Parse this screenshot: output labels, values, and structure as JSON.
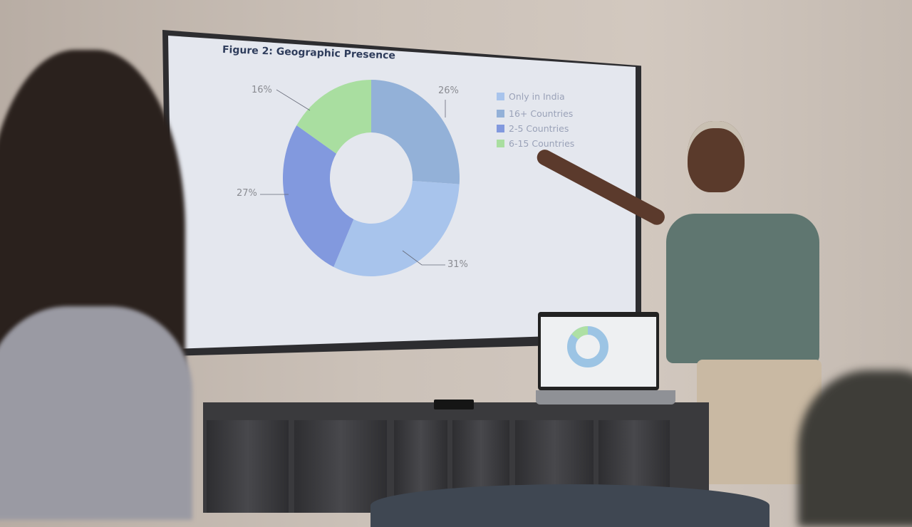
{
  "slide": {
    "title": "Figure 2: Geographic Presence",
    "labels": [
      "26%",
      "31%",
      "27%",
      "16%"
    ]
  },
  "chart_data": {
    "type": "pie",
    "donut": true,
    "title": "Figure 2: Geographic Presence",
    "categories": [
      "16+ Countries",
      "Only in India",
      "2-5 Countries",
      "6-15 Countries"
    ],
    "values": [
      26,
      31,
      27,
      16
    ],
    "value_labels": [
      "26%",
      "31%",
      "27%",
      "16%"
    ],
    "legend": [
      "Only in India",
      "16+ Countries",
      "2-5 Countries",
      "6-15 Countries"
    ],
    "legend_placement": "right",
    "colors": {
      "Only in India": "#a8c4ec",
      "16+ Countries": "#93b1d8",
      "2-5 Countries": "#8299de",
      "6-15 Countries": "#a9dea0"
    }
  }
}
